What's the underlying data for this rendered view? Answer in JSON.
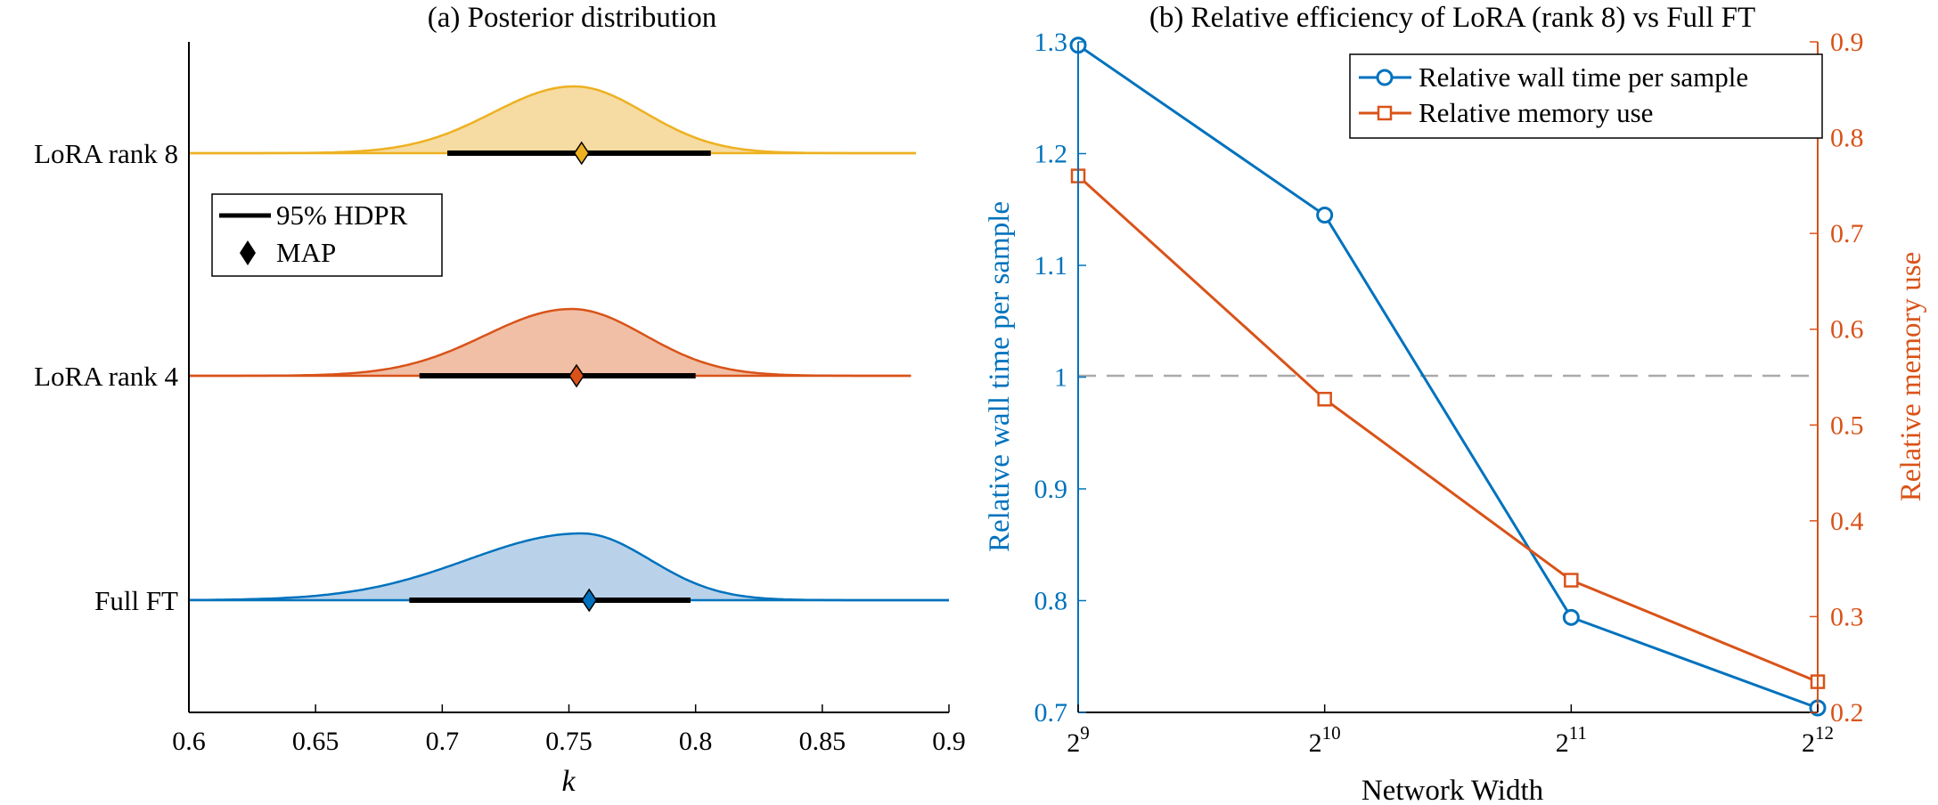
{
  "chart_data": [
    {
      "type": "ridgeline",
      "title": "(a) Posterior distribution",
      "xlabel": "k",
      "xlim": [
        0.6,
        0.9
      ],
      "xticks": [
        0.6,
        0.65,
        0.7,
        0.75,
        0.8,
        0.85,
        0.9
      ],
      "xtick_labels": [
        "0.6",
        "0.65",
        "0.7",
        "0.75",
        "0.8",
        "0.85",
        "0.9"
      ],
      "legend": {
        "position": "upper-left",
        "entries": [
          "95% HDPR",
          "MAP"
        ]
      },
      "series": [
        {
          "name": "LoRA rank 8",
          "color": "#EDB120",
          "fill": "#F6DBA2",
          "map": 0.755,
          "hdpr": [
            0.702,
            0.806
          ],
          "support": [
            0.6,
            0.887
          ],
          "mode": 0.752,
          "sd_left": 0.032,
          "sd_right": 0.028
        },
        {
          "name": "LoRA rank 4",
          "color": "#D95319",
          "fill": "#F1BFA5",
          "map": 0.753,
          "hdpr": [
            0.691,
            0.8
          ],
          "support": [
            0.6,
            0.885
          ],
          "mode": 0.751,
          "sd_left": 0.034,
          "sd_right": 0.029
        },
        {
          "name": "Full FT",
          "color": "#0072BD",
          "fill": "#B9D2EA",
          "map": 0.758,
          "hdpr": [
            0.687,
            0.798
          ],
          "support": [
            0.6,
            0.9
          ],
          "mode": 0.755,
          "sd_left": 0.045,
          "sd_right": 0.027
        }
      ]
    },
    {
      "type": "line",
      "title": "(b) Relative efficiency of LoRA (rank 8) vs Full FT",
      "xlabel": "Network Width",
      "ylabel": "Relative wall time per sample",
      "y2label": "Relative memory use",
      "x": [
        9,
        10,
        11,
        12
      ],
      "x_tick_base": "2",
      "x_tick_exps": [
        "9",
        "10",
        "11",
        "12"
      ],
      "ylim": [
        0.7,
        1.3
      ],
      "yticks": [
        "0.7",
        "0.8",
        "0.9",
        "1",
        "1.1",
        "1.2",
        "1.3"
      ],
      "y2lim": [
        0.2,
        0.9
      ],
      "y2ticks": [
        "0.2",
        "0.3",
        "0.4",
        "0.5",
        "0.6",
        "0.7",
        "0.8",
        "0.9"
      ],
      "reference_line": {
        "y": 1.0,
        "style": "dashed",
        "color": "#AAAAAA"
      },
      "legend": {
        "position": "top-right"
      },
      "series": [
        {
          "name": "Relative wall time per sample",
          "axis": "left",
          "marker": "circle",
          "color": "#0072BD",
          "values": [
            1.297,
            1.145,
            0.785,
            0.704
          ]
        },
        {
          "name": "Relative memory use",
          "axis": "right",
          "marker": "square",
          "color": "#D95319",
          "values": [
            0.76,
            0.527,
            0.338,
            0.232
          ]
        }
      ]
    }
  ]
}
